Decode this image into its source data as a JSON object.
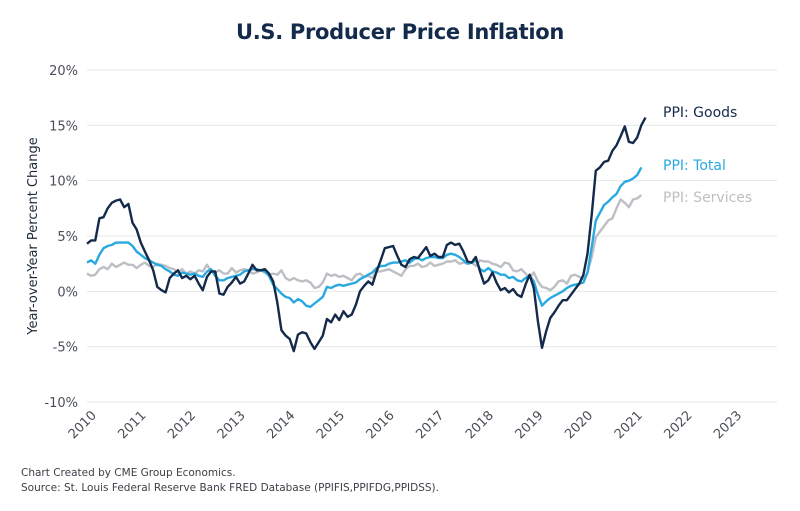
{
  "chart_data": {
    "type": "line",
    "title": "U.S. Producer Price Inflation",
    "xlabel": "",
    "ylabel": "Year-over-Year Percent Change",
    "ylim": [
      -10,
      20
    ],
    "xlim": [
      2010.0,
      2023.9
    ],
    "yticks": [
      20,
      15,
      10,
      5,
      0,
      -5,
      -10
    ],
    "ytick_labels": [
      "20%",
      "15%",
      "10%",
      "5%",
      "0%",
      "-5%",
      "-10%"
    ],
    "xtick_labels": [
      "2010",
      "2011",
      "2012",
      "2013",
      "2014",
      "2015",
      "2016",
      "2017",
      "2018",
      "2019",
      "2020",
      "2021",
      "2022",
      "2023"
    ],
    "grid": true,
    "legend_position": "right-inline-labels",
    "x_start": "2010-01",
    "frequency": "monthly",
    "series": [
      {
        "name": "PPI: Goods",
        "color": "#142a4b",
        "values": [
          4.3,
          4.6,
          4.6,
          6.6,
          6.7,
          7.5,
          8.0,
          8.2,
          8.3,
          7.6,
          7.9,
          6.2,
          5.6,
          4.4,
          3.6,
          2.8,
          1.9,
          0.4,
          0.1,
          -0.1,
          1.2,
          1.6,
          1.9,
          1.2,
          1.4,
          1.1,
          1.4,
          0.7,
          0.1,
          1.3,
          1.8,
          1.8,
          -0.2,
          -0.3,
          0.4,
          0.8,
          1.3,
          0.7,
          0.9,
          1.6,
          2.4,
          1.9,
          1.9,
          2.0,
          1.6,
          0.9,
          -1.0,
          -3.5,
          -4.0,
          -4.3,
          -5.4,
          -3.9,
          -3.7,
          -3.8,
          -4.6,
          -5.2,
          -4.6,
          -4.0,
          -2.5,
          -2.8,
          -2.1,
          -2.6,
          -1.8,
          -2.3,
          -2.1,
          -1.2,
          0.0,
          0.5,
          0.9,
          0.6,
          1.8,
          2.8,
          3.9,
          4.0,
          4.1,
          3.2,
          2.4,
          2.2,
          2.9,
          3.1,
          3.0,
          3.5,
          4.0,
          3.2,
          3.4,
          3.1,
          3.1,
          4.2,
          4.4,
          4.2,
          4.3,
          3.6,
          2.7,
          2.6,
          3.1,
          1.8,
          0.7,
          1.0,
          1.7,
          0.8,
          0.1,
          0.3,
          -0.1,
          0.2,
          -0.3,
          -0.5,
          0.6,
          1.5,
          0.3,
          -2.7,
          -5.1,
          -3.6,
          -2.4,
          -1.9,
          -1.3,
          -0.8,
          -0.8,
          -0.3,
          0.2,
          0.7,
          1.5,
          3.4,
          6.9,
          10.9,
          11.2,
          11.7,
          11.8,
          12.7,
          13.2,
          14.0,
          14.9,
          13.5,
          13.4,
          13.9,
          15.0,
          15.7
        ]
      },
      {
        "name": "PPI: Total",
        "color": "#29a9df",
        "values": [
          2.6,
          2.8,
          2.5,
          3.3,
          3.9,
          4.1,
          4.2,
          4.4,
          4.4,
          4.4,
          4.4,
          4.1,
          3.6,
          3.3,
          3.0,
          2.8,
          2.6,
          2.4,
          2.3,
          2.0,
          1.8,
          1.5,
          1.4,
          1.7,
          1.6,
          1.5,
          1.6,
          1.4,
          1.3,
          1.8,
          2.0,
          1.4,
          1.0,
          1.0,
          1.2,
          1.3,
          1.4,
          1.5,
          1.8,
          1.9,
          2.0,
          2.0,
          1.9,
          1.8,
          1.4,
          0.6,
          0.2,
          -0.2,
          -0.5,
          -0.6,
          -1.0,
          -0.7,
          -0.9,
          -1.3,
          -1.4,
          -1.1,
          -0.8,
          -0.5,
          0.4,
          0.3,
          0.5,
          0.6,
          0.5,
          0.6,
          0.7,
          0.8,
          1.1,
          1.3,
          1.5,
          1.7,
          2.1,
          2.3,
          2.3,
          2.5,
          2.6,
          2.6,
          2.7,
          2.8,
          2.6,
          2.9,
          3.0,
          2.8,
          3.0,
          3.1,
          3.1,
          3.0,
          3.0,
          3.3,
          3.4,
          3.3,
          3.1,
          2.8,
          2.5,
          2.6,
          2.8,
          2.0,
          1.8,
          2.1,
          1.8,
          1.7,
          1.5,
          1.5,
          1.2,
          1.3,
          1.0,
          0.9,
          1.2,
          1.4,
          0.9,
          -0.3,
          -1.3,
          -0.9,
          -0.6,
          -0.4,
          -0.2,
          0.0,
          0.3,
          0.5,
          0.6,
          0.7,
          0.8,
          1.7,
          4.0,
          6.4,
          7.1,
          7.8,
          8.1,
          8.5,
          8.8,
          9.5,
          9.9,
          10.0,
          10.2,
          10.5,
          11.2
        ]
      },
      {
        "name": "PPI: Services",
        "color": "#bcbfc3",
        "values": [
          1.6,
          1.4,
          1.5,
          2.0,
          2.2,
          2.0,
          2.5,
          2.2,
          2.4,
          2.6,
          2.4,
          2.4,
          2.1,
          2.4,
          2.6,
          2.3,
          2.2,
          2.5,
          2.4,
          2.3,
          2.1,
          2.0,
          1.7,
          2.0,
          1.6,
          1.8,
          1.6,
          1.9,
          1.8,
          2.4,
          1.8,
          1.7,
          1.9,
          1.6,
          1.6,
          2.1,
          1.7,
          1.9,
          2.0,
          1.9,
          1.6,
          1.7,
          1.9,
          1.7,
          1.5,
          1.6,
          1.5,
          1.9,
          1.2,
          1.0,
          1.2,
          1.0,
          0.9,
          1.0,
          0.8,
          0.3,
          0.4,
          0.8,
          1.6,
          1.4,
          1.5,
          1.3,
          1.4,
          1.2,
          1.0,
          1.5,
          1.6,
          1.3,
          1.4,
          1.2,
          1.8,
          1.8,
          1.9,
          2.0,
          1.8,
          1.6,
          1.4,
          2.0,
          2.3,
          2.3,
          2.5,
          2.2,
          2.3,
          2.6,
          2.3,
          2.4,
          2.5,
          2.7,
          2.7,
          2.8,
          2.5,
          2.6,
          2.5,
          2.6,
          2.3,
          2.8,
          2.7,
          2.7,
          2.5,
          2.4,
          2.2,
          2.6,
          2.5,
          1.9,
          1.8,
          2.0,
          1.6,
          1.2,
          1.7,
          0.9,
          0.4,
          0.3,
          0.1,
          0.4,
          0.9,
          1.0,
          0.7,
          1.4,
          1.5,
          1.3,
          1.1,
          1.7,
          3.1,
          4.9,
          5.4,
          5.9,
          6.4,
          6.6,
          7.5,
          8.3,
          8.0,
          7.6,
          8.3,
          8.4,
          8.7
        ]
      }
    ]
  },
  "footer": {
    "line1": "Chart Created by CME Group Economics.",
    "line2": "Source: St. Louis Federal Reserve Bank FRED Database (PPIFIS,PPIFDG,PPIDSS)."
  }
}
